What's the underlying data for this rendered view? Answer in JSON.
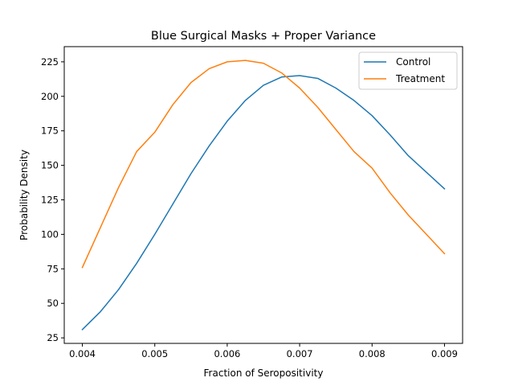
{
  "chart_data": {
    "type": "line",
    "title": "Blue Surgical Masks + Proper Variance",
    "xlabel": "Fraction of Seropositivity",
    "ylabel": "Probability Density",
    "xlim": [
      0.00375,
      0.00925
    ],
    "ylim": [
      21,
      236
    ],
    "xticks": [
      0.004,
      0.005,
      0.006,
      0.007,
      0.008,
      0.009
    ],
    "xtick_labels": [
      "0.004",
      "0.005",
      "0.006",
      "0.007",
      "0.008",
      "0.009"
    ],
    "yticks": [
      25,
      50,
      75,
      100,
      125,
      150,
      175,
      200,
      225
    ],
    "ytick_labels": [
      "25",
      "50",
      "75",
      "100",
      "125",
      "150",
      "175",
      "200",
      "225"
    ],
    "grid": false,
    "legend_position": "top-right",
    "series": [
      {
        "name": "Control",
        "color": "#1f77b4",
        "x": [
          0.004,
          0.00425,
          0.0045,
          0.00475,
          0.005,
          0.00525,
          0.0055,
          0.00575,
          0.006,
          0.00625,
          0.0065,
          0.00675,
          0.007,
          0.00725,
          0.0075,
          0.00775,
          0.008,
          0.00825,
          0.0085,
          0.00875,
          0.009
        ],
        "y": [
          31,
          44,
          60,
          79,
          100,
          122,
          144,
          164,
          182,
          197,
          208,
          214,
          215,
          213,
          206,
          197,
          186,
          172,
          157,
          145,
          133
        ]
      },
      {
        "name": "Treatment",
        "color": "#ff7f0e",
        "x": [
          0.004,
          0.00425,
          0.0045,
          0.00475,
          0.005,
          0.00525,
          0.0055,
          0.00575,
          0.006,
          0.00625,
          0.0065,
          0.00675,
          0.007,
          0.00725,
          0.0075,
          0.00775,
          0.008,
          0.00825,
          0.0085,
          0.00875,
          0.009
        ],
        "y": [
          76,
          105,
          134,
          160,
          174,
          194,
          210,
          220,
          225,
          226,
          224,
          217,
          206,
          192,
          176,
          160,
          148,
          130,
          114,
          100,
          86
        ]
      }
    ]
  }
}
